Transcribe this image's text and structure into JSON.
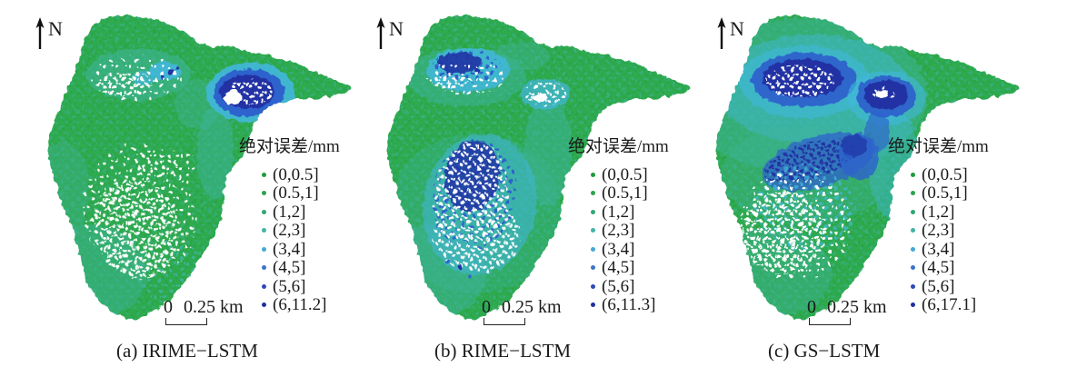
{
  "palette": {
    "green": "#2faa4f",
    "gdark": "#27a146",
    "teal": "#3eb49c",
    "cyan": "#41b7dc",
    "blue": "#2d62cc",
    "navy": "#2133a4",
    "white": "#ffffff"
  },
  "panels": [
    {
      "id": "a",
      "caption": "(a) IRIME−LSTM",
      "north_label": "N",
      "legend_title": "绝对误差/mm",
      "scale_zero": "0",
      "scale_label": "0.25 km",
      "legend_items": [
        {
          "label": "(0,0.5]",
          "color": "#1d9b3d"
        },
        {
          "label": "(0.5,1]",
          "color": "#2ba24d"
        },
        {
          "label": "(1,2]",
          "color": "#2fa673"
        },
        {
          "label": "(2,3]",
          "color": "#41b3a6"
        },
        {
          "label": "(3,4]",
          "color": "#41a9d5"
        },
        {
          "label": "(4,5]",
          "color": "#3a74c9"
        },
        {
          "label": "(5,6]",
          "color": "#2f49b5"
        },
        {
          "label": "(6,11.2]",
          "color": "#20309e"
        }
      ]
    },
    {
      "id": "b",
      "caption": "(b) RIME−LSTM",
      "north_label": "N",
      "legend_title": "绝对误差/mm",
      "scale_zero": "0",
      "scale_label": "0.25 km",
      "legend_items": [
        {
          "label": "(0,0.5]",
          "color": "#1d9b3d"
        },
        {
          "label": "(0.5,1]",
          "color": "#2ba24d"
        },
        {
          "label": "(1,2]",
          "color": "#2fa673"
        },
        {
          "label": "(2,3]",
          "color": "#41b3a6"
        },
        {
          "label": "(3,4]",
          "color": "#41a9d5"
        },
        {
          "label": "(4,5]",
          "color": "#3a74c9"
        },
        {
          "label": "(5,6]",
          "color": "#2f49b5"
        },
        {
          "label": "(6,11.3]",
          "color": "#20309e"
        }
      ]
    },
    {
      "id": "c",
      "caption": "(c) GS−LSTM",
      "north_label": "N",
      "legend_title": "绝对误差/mm",
      "scale_zero": "0",
      "scale_label": "0.25 km",
      "legend_items": [
        {
          "label": "(0,0.5]",
          "color": "#1d9b3d"
        },
        {
          "label": "(0.5,1]",
          "color": "#2ba24d"
        },
        {
          "label": "(1,2]",
          "color": "#2fa673"
        },
        {
          "label": "(2,3]",
          "color": "#41b3a6"
        },
        {
          "label": "(3,4]",
          "color": "#41a9d5"
        },
        {
          "label": "(4,5]",
          "color": "#3a74c9"
        },
        {
          "label": "(5,6]",
          "color": "#2f49b5"
        },
        {
          "label": "(6,17.1]",
          "color": "#20309e"
        }
      ]
    }
  ]
}
